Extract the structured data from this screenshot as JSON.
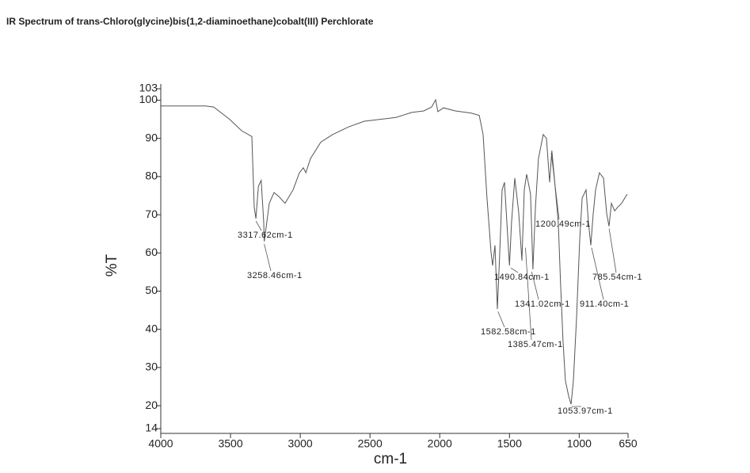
{
  "chart_data": {
    "type": "line",
    "title": "IR Spectrum of trans-Chloro(glycine)bis(1,2-diaminoethane)cobalt(III) Perchlorate",
    "x_label": "cm-1",
    "y_label": "%T",
    "xlim": [
      4000,
      650
    ],
    "ylim": [
      14,
      103
    ],
    "xticks": [
      4000,
      3500,
      3000,
      2500,
      2000,
      1500,
      1000,
      650
    ],
    "yticks": [
      14,
      20,
      30,
      40,
      50,
      60,
      70,
      80,
      90,
      100,
      103
    ],
    "series": [
      {
        "name": "%T",
        "color": "#555555",
        "x": [
          4000,
          3680,
          3620,
          3506,
          3420,
          3347,
          3330,
          3318,
          3300,
          3280,
          3262,
          3258,
          3222,
          3188,
          3154,
          3109,
          3052,
          3006,
          2978,
          2960,
          2927,
          2853,
          2768,
          2654,
          2541,
          2427,
          2314,
          2200,
          2115,
          2058,
          2030,
          2013,
          1973,
          1888,
          1774,
          1717,
          1689,
          1661,
          1632,
          1621,
          1604,
          1587,
          1570,
          1553,
          1536,
          1519,
          1500,
          1485,
          1462,
          1434,
          1411,
          1394,
          1377,
          1349,
          1332,
          1314,
          1292,
          1258,
          1235,
          1212,
          1196,
          1178,
          1150,
          1133,
          1116,
          1099,
          1076,
          1058,
          1042,
          1019,
          996,
          979,
          951,
          934,
          917,
          900,
          883,
          855,
          826,
          803,
          786,
          769,
          746,
          724,
          696,
          656
        ],
        "values": [
          98.5,
          98.5,
          98.2,
          95,
          92,
          90.5,
          72,
          69,
          77.5,
          79,
          68,
          63,
          73,
          75.8,
          74.8,
          73,
          76.5,
          81,
          82.3,
          81,
          84.7,
          89,
          91,
          93,
          94.5,
          95,
          95.5,
          96.8,
          97.2,
          98.2,
          100.1,
          97,
          98,
          97.2,
          96.6,
          96,
          91,
          74.4,
          60,
          56.7,
          62,
          45.3,
          60,
          76.5,
          78.5,
          68,
          56.7,
          68,
          79.6,
          70.7,
          58,
          76.5,
          80.6,
          75.4,
          55.7,
          72,
          84.7,
          91,
          90,
          78.5,
          86.8,
          79.6,
          68,
          51.5,
          37,
          26.6,
          22.5,
          20.4,
          26.6,
          43,
          64,
          74.4,
          76.5,
          68,
          62,
          70.2,
          76.5,
          81,
          79.6,
          70.2,
          67,
          73,
          71,
          72,
          73,
          75.4
        ]
      }
    ],
    "annotations": [
      {
        "text": "3317.62cm-1",
        "x": 3317.62,
        "y": 69
      },
      {
        "text": "3258.46cm-1",
        "x": 3258.46,
        "y": 63
      },
      {
        "text": "1582.58cm-1",
        "x": 1582.58,
        "y": 45.3
      },
      {
        "text": "1490.84cm-1",
        "x": 1490.84,
        "y": 56.7
      },
      {
        "text": "1385.47cm-1",
        "x": 1385.47,
        "y": 62
      },
      {
        "text": "1341.02cm-1",
        "x": 1341.02,
        "y": 55.7
      },
      {
        "text": "1200.49cm-1",
        "x": 1200.49,
        "y": 86.8
      },
      {
        "text": "1053.97cm-1",
        "x": 1053.97,
        "y": 20.4
      },
      {
        "text": "911.40cm-1",
        "x": 911.4,
        "y": 62
      },
      {
        "text": "785.54cm-1",
        "x": 785.54,
        "y": 67
      }
    ]
  }
}
